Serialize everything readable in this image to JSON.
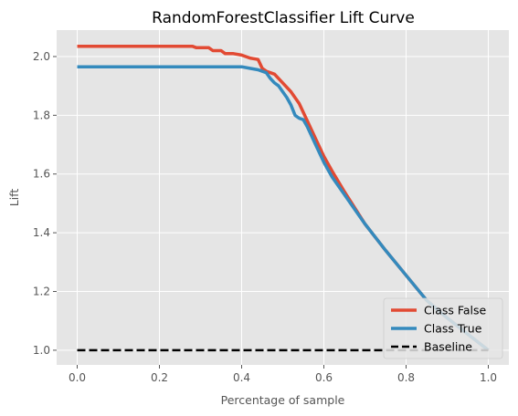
{
  "chart_data": {
    "type": "line",
    "title": "RandomForestClassifier Lift Curve",
    "xlabel": "Percentage of sample",
    "ylabel": "Lift",
    "xlim": [
      -0.05,
      1.05
    ],
    "ylim": [
      0.95,
      2.09
    ],
    "xticks": [
      0.0,
      0.2,
      0.4,
      0.6,
      0.8,
      1.0
    ],
    "xtick_labels": [
      "0.0",
      "0.2",
      "0.4",
      "0.6",
      "0.8",
      "1.0"
    ],
    "yticks": [
      1.0,
      1.2,
      1.4,
      1.6,
      1.8,
      2.0
    ],
    "ytick_labels": [
      "1.0",
      "1.2",
      "1.4",
      "1.6",
      "1.8",
      "2.0"
    ],
    "grid": true,
    "legend_position": "lower-right",
    "series": [
      {
        "name": "Class False",
        "color": "#e24a33",
        "style": "solid",
        "x": [
          0.0,
          0.1,
          0.2,
          0.28,
          0.29,
          0.3,
          0.32,
          0.33,
          0.35,
          0.36,
          0.38,
          0.4,
          0.41,
          0.42,
          0.44,
          0.45,
          0.46,
          0.47,
          0.48,
          0.5,
          0.52,
          0.54,
          0.56,
          0.58,
          0.6,
          0.62,
          0.65,
          0.7,
          0.75,
          0.8,
          0.85,
          0.9,
          0.95,
          1.0
        ],
        "y": [
          2.035,
          2.035,
          2.035,
          2.035,
          2.03,
          2.03,
          2.03,
          2.02,
          2.02,
          2.01,
          2.01,
          2.005,
          2.0,
          1.995,
          1.99,
          1.96,
          1.95,
          1.945,
          1.94,
          1.91,
          1.88,
          1.84,
          1.78,
          1.72,
          1.66,
          1.61,
          1.54,
          1.43,
          1.34,
          1.255,
          1.17,
          1.11,
          1.055,
          1.0
        ]
      },
      {
        "name": "Class True",
        "color": "#348abd",
        "style": "solid",
        "x": [
          0.0,
          0.1,
          0.2,
          0.3,
          0.4,
          0.42,
          0.44,
          0.46,
          0.47,
          0.48,
          0.49,
          0.5,
          0.51,
          0.52,
          0.53,
          0.54,
          0.55,
          0.56,
          0.58,
          0.6,
          0.62,
          0.65,
          0.7,
          0.75,
          0.8,
          0.85,
          0.9,
          0.95,
          1.0
        ],
        "y": [
          1.965,
          1.965,
          1.965,
          1.965,
          1.965,
          1.96,
          1.955,
          1.945,
          1.925,
          1.91,
          1.9,
          1.88,
          1.86,
          1.835,
          1.8,
          1.79,
          1.785,
          1.76,
          1.7,
          1.64,
          1.59,
          1.53,
          1.43,
          1.34,
          1.255,
          1.17,
          1.11,
          1.055,
          1.0
        ]
      },
      {
        "name": "Baseline",
        "color": "#000000",
        "style": "dashed",
        "x": [
          0.0,
          1.0
        ],
        "y": [
          1.0,
          1.0
        ]
      }
    ]
  }
}
